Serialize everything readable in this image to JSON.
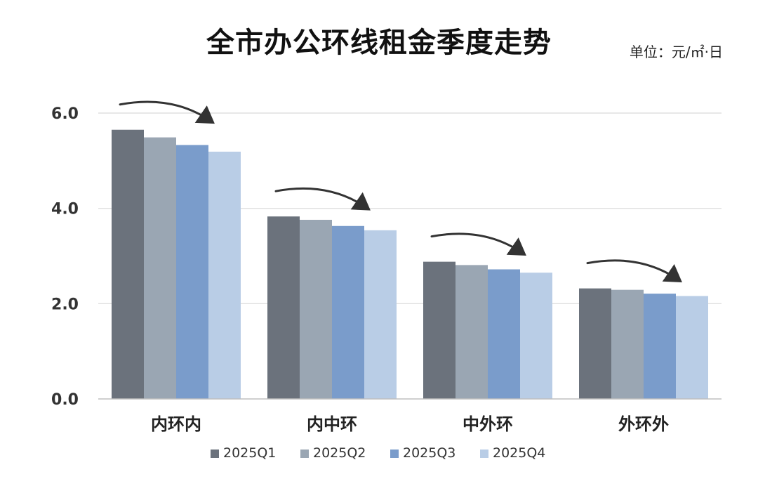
{
  "chart_data": {
    "type": "bar",
    "title": "全市办公环线租金季度走势",
    "unit_label": "单位：元/㎡·日",
    "categories": [
      "内环内",
      "内中环",
      "中外环",
      "外环外"
    ],
    "series": [
      {
        "name": "2025Q1",
        "values": [
          5.65,
          3.83,
          2.88,
          2.32
        ]
      },
      {
        "name": "2025Q2",
        "values": [
          5.49,
          3.76,
          2.81,
          2.29
        ]
      },
      {
        "name": "2025Q3",
        "values": [
          5.33,
          3.63,
          2.72,
          2.21
        ]
      },
      {
        "name": "2025Q4",
        "values": [
          5.19,
          3.54,
          2.65,
          2.16
        ]
      }
    ],
    "yticks": [
      "0.0",
      "2.0",
      "4.0",
      "6.0"
    ],
    "ylim": [
      0,
      6
    ],
    "grid": true,
    "legend_position": "bottom",
    "annotations": "downward-trend-arrow over each category"
  },
  "colors": {
    "series": [
      "#6b727c",
      "#9aa6b3",
      "#7a9ccb",
      "#b9cde6"
    ],
    "grid": "#d9d9d9",
    "axis": "#bfbfbf",
    "arrow": "#333333",
    "text": "#333333"
  }
}
